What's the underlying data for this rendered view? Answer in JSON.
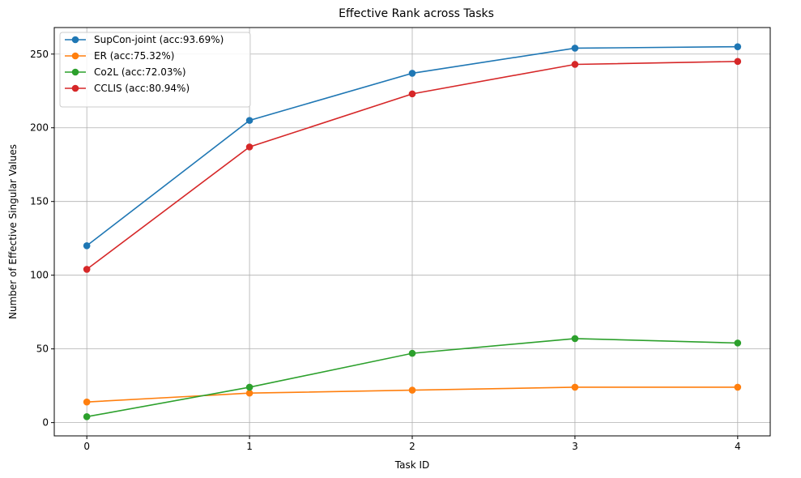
{
  "chart_data": {
    "type": "line",
    "title": "Effective Rank across Tasks",
    "xlabel": "Task ID",
    "ylabel": "Number of Effective Singular Values",
    "x": [
      0,
      1,
      2,
      3,
      4
    ],
    "x_ticks": [
      "0",
      "1",
      "2",
      "3",
      "4"
    ],
    "xlim": [
      -0.2,
      4.2
    ],
    "ylim": [
      -9,
      268
    ],
    "y_ticks": [
      0,
      50,
      100,
      150,
      200,
      250
    ],
    "grid": true,
    "legend_position": "top-left",
    "series": [
      {
        "name": "SupCon-joint (acc:93.69%)",
        "color": "#1f77b4",
        "values": [
          120,
          205,
          237,
          254,
          255
        ]
      },
      {
        "name": "ER (acc:75.32%)",
        "color": "#ff7f0e",
        "values": [
          14,
          20,
          22,
          24,
          24
        ]
      },
      {
        "name": "Co2L (acc:72.03%)",
        "color": "#2ca02c",
        "values": [
          4,
          24,
          47,
          57,
          54
        ]
      },
      {
        "name": "CCLIS (acc:80.94%)",
        "color": "#d62728",
        "values": [
          104,
          187,
          223,
          243,
          245
        ]
      }
    ]
  }
}
